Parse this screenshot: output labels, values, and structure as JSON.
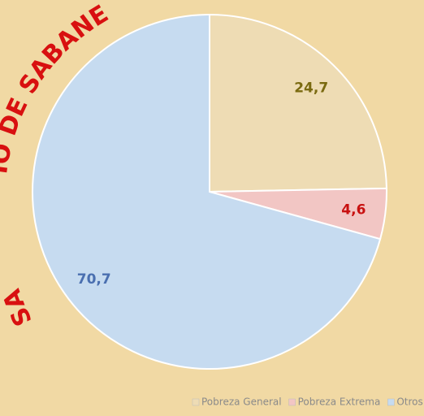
{
  "chart_data": {
    "type": "pie",
    "categories": [
      "Pobreza General",
      "Pobreza Extrema",
      "Otros"
    ],
    "values": [
      24.7,
      4.6,
      70.7
    ],
    "value_labels": [
      "24,7",
      "4,6",
      "70,7"
    ],
    "colors": [
      "#eedcb4",
      "#f2c6c4",
      "#c6dbf0"
    ],
    "label_colors": [
      "#7a6a10",
      "#c81010",
      "#4a6fb0"
    ],
    "legend": "bottom",
    "annotations": [
      "SA",
      "IO DE SABANE"
    ]
  }
}
